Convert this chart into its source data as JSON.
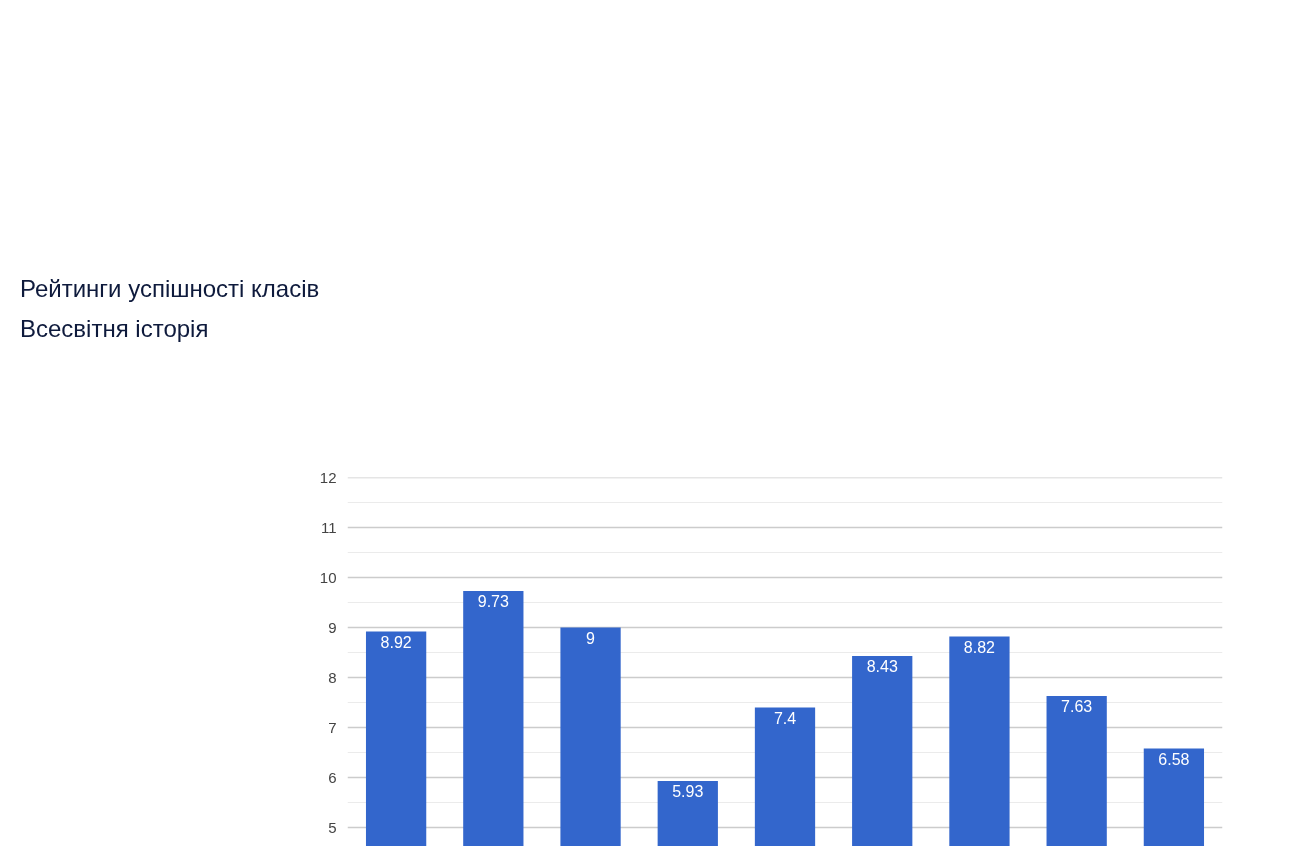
{
  "chart_data": {
    "type": "bar",
    "title": "Рейтинги успішності класів",
    "subtitle": "Всесвітня історія",
    "categories": [
      null,
      null,
      null,
      null,
      null,
      null,
      null,
      null,
      null
    ],
    "values": [
      8.92,
      9.73,
      9,
      5.93,
      7.4,
      8.43,
      8.82,
      7.63,
      6.58
    ],
    "color": "#3366cc",
    "data_labels": true,
    "grid": "y",
    "tick_labels": "y",
    "ylim": [
      4.6,
      12
    ],
    "yticks": [
      5,
      {
        "value": 5.5,
        "label": null
      },
      6,
      {
        "value": 6.5,
        "label": null
      },
      7,
      {
        "value": 7.5,
        "label": null
      },
      8,
      {
        "value": 8.5,
        "label": null
      },
      9,
      {
        "value": 9.5,
        "label": null
      },
      10,
      {
        "value": 10.5,
        "label": null
      },
      11,
      {
        "value": 11.5,
        "label": null
      },
      12
    ]
  }
}
